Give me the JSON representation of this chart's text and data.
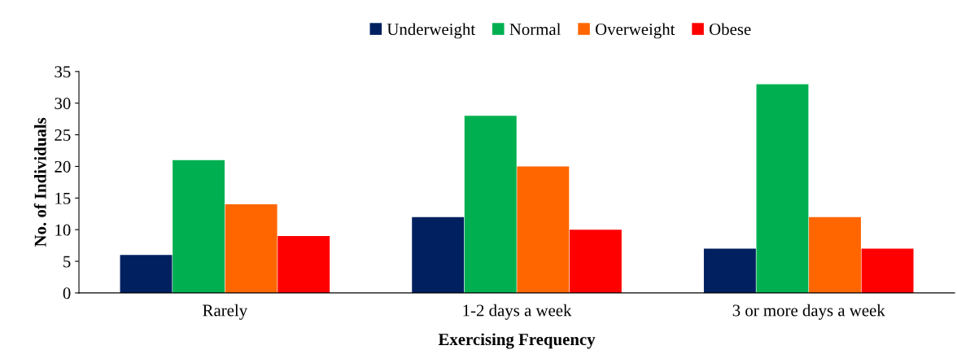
{
  "chart_data": {
    "type": "bar",
    "xlabel": "Exercising Frequency",
    "ylabel": "No. of Individuals",
    "categories": [
      "Rarely",
      "1-2 days a week",
      "3 or more days a week"
    ],
    "series": [
      {
        "name": "Underweight",
        "color": "#002060",
        "values": [
          6,
          12,
          7
        ]
      },
      {
        "name": "Normal",
        "color": "#00b050",
        "values": [
          21,
          28,
          33
        ]
      },
      {
        "name": "Overweight",
        "color": "#ff6600",
        "values": [
          14,
          20,
          12
        ]
      },
      {
        "name": "Obese",
        "color": "#ff0000",
        "values": [
          9,
          10,
          7
        ]
      }
    ],
    "ylim": [
      0,
      35
    ],
    "yticks": [
      0,
      5,
      10,
      15,
      20,
      25,
      30,
      35
    ],
    "grid": false,
    "legend": "top"
  }
}
